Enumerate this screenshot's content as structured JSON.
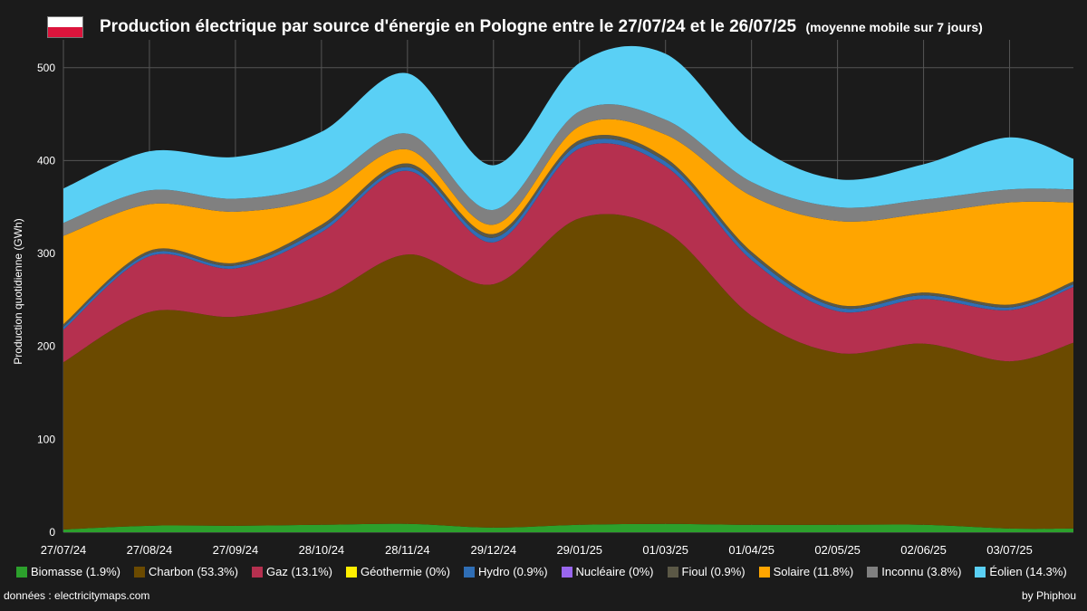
{
  "header": {
    "title": "Production électrique par source d'énergie en Pologne entre le 27/07/24 et le 26/07/25",
    "subtitle": "(moyenne mobile sur 7 jours)",
    "flag_colors": [
      "#ffffff",
      "#dc143c"
    ]
  },
  "footer": {
    "source": "données : electricitymaps.com",
    "author": "by Phiphou"
  },
  "chart_data": {
    "type": "area",
    "stacked": true,
    "title": "Production électrique par source d'énergie en Pologne entre le 27/07/24 et le 26/07/25",
    "subtitle": "(moyenne mobile sur 7 jours)",
    "ylabel": "Production quotidienne (GWh)",
    "xlabel": "",
    "ylim": [
      0,
      530
    ],
    "y_ticks": [
      0,
      100,
      200,
      300,
      400,
      500
    ],
    "grid": true,
    "legend_position": "bottom",
    "x": [
      "27/07/24",
      "27/08/24",
      "27/09/24",
      "28/10/24",
      "28/11/24",
      "29/12/24",
      "29/01/25",
      "01/03/25",
      "01/04/25",
      "02/05/25",
      "02/06/25",
      "03/07/25",
      "26/07/25"
    ],
    "x_tick_labels": [
      "27/07/24",
      "27/08/24",
      "27/09/24",
      "28/10/24",
      "28/11/24",
      "29/12/24",
      "29/01/25",
      "01/03/25",
      "01/04/25",
      "02/05/25",
      "02/06/25",
      "03/07/25"
    ],
    "series": [
      {
        "name": "Biomasse",
        "legend": "Biomasse (1.9%)",
        "color": "#2ca02c",
        "values": [
          3,
          7,
          7,
          8,
          9,
          5,
          8,
          9,
          8,
          8,
          8,
          4,
          4
        ]
      },
      {
        "name": "Charbon",
        "legend": "Charbon (53.3%)",
        "color": "#6b4a00",
        "values": [
          180,
          230,
          225,
          245,
          290,
          262,
          330,
          315,
          225,
          185,
          195,
          180,
          200
        ]
      },
      {
        "name": "Gaz",
        "legend": "Gaz (13.1%)",
        "color": "#b5304f",
        "values": [
          35,
          60,
          52,
          70,
          90,
          45,
          75,
          70,
          60,
          45,
          48,
          55,
          60
        ]
      },
      {
        "name": "Géothermie",
        "legend": "Géothermie (0%)",
        "color": "#ffee00",
        "values": [
          0,
          0,
          0,
          0,
          0,
          0,
          0,
          0,
          0,
          0,
          0,
          0,
          0
        ]
      },
      {
        "name": "Hydro",
        "legend": "Hydro (0.9%)",
        "color": "#2f6eb5",
        "values": [
          3,
          3,
          3,
          4,
          4,
          5,
          5,
          5,
          5,
          4,
          4,
          3,
          3
        ]
      },
      {
        "name": "Nucléaire",
        "legend": "Nucléaire (0%)",
        "color": "#9966ee",
        "values": [
          0,
          0,
          0,
          0,
          0,
          0,
          0,
          0,
          0,
          0,
          0,
          0,
          0
        ]
      },
      {
        "name": "Fioul",
        "legend": "Fioul (0.9%)",
        "color": "#5b5846",
        "values": [
          3,
          3,
          3,
          4,
          4,
          4,
          4,
          4,
          4,
          3,
          3,
          3,
          3
        ]
      },
      {
        "name": "Solaire",
        "legend": "Solaire (11.8%)",
        "color": "#ffa500",
        "values": [
          95,
          50,
          55,
          30,
          15,
          10,
          15,
          25,
          60,
          90,
          85,
          110,
          85
        ]
      },
      {
        "name": "Inconnu",
        "legend": "Inconnu (3.8%)",
        "color": "#808080",
        "values": [
          14,
          15,
          14,
          15,
          17,
          16,
          16,
          16,
          15,
          15,
          15,
          14,
          14
        ]
      },
      {
        "name": "Éolien",
        "legend": "Éolien (14.3%)",
        "color": "#5ad0f5",
        "values": [
          37,
          42,
          45,
          55,
          65,
          48,
          52,
          71,
          43,
          30,
          38,
          56,
          33
        ]
      }
    ]
  }
}
